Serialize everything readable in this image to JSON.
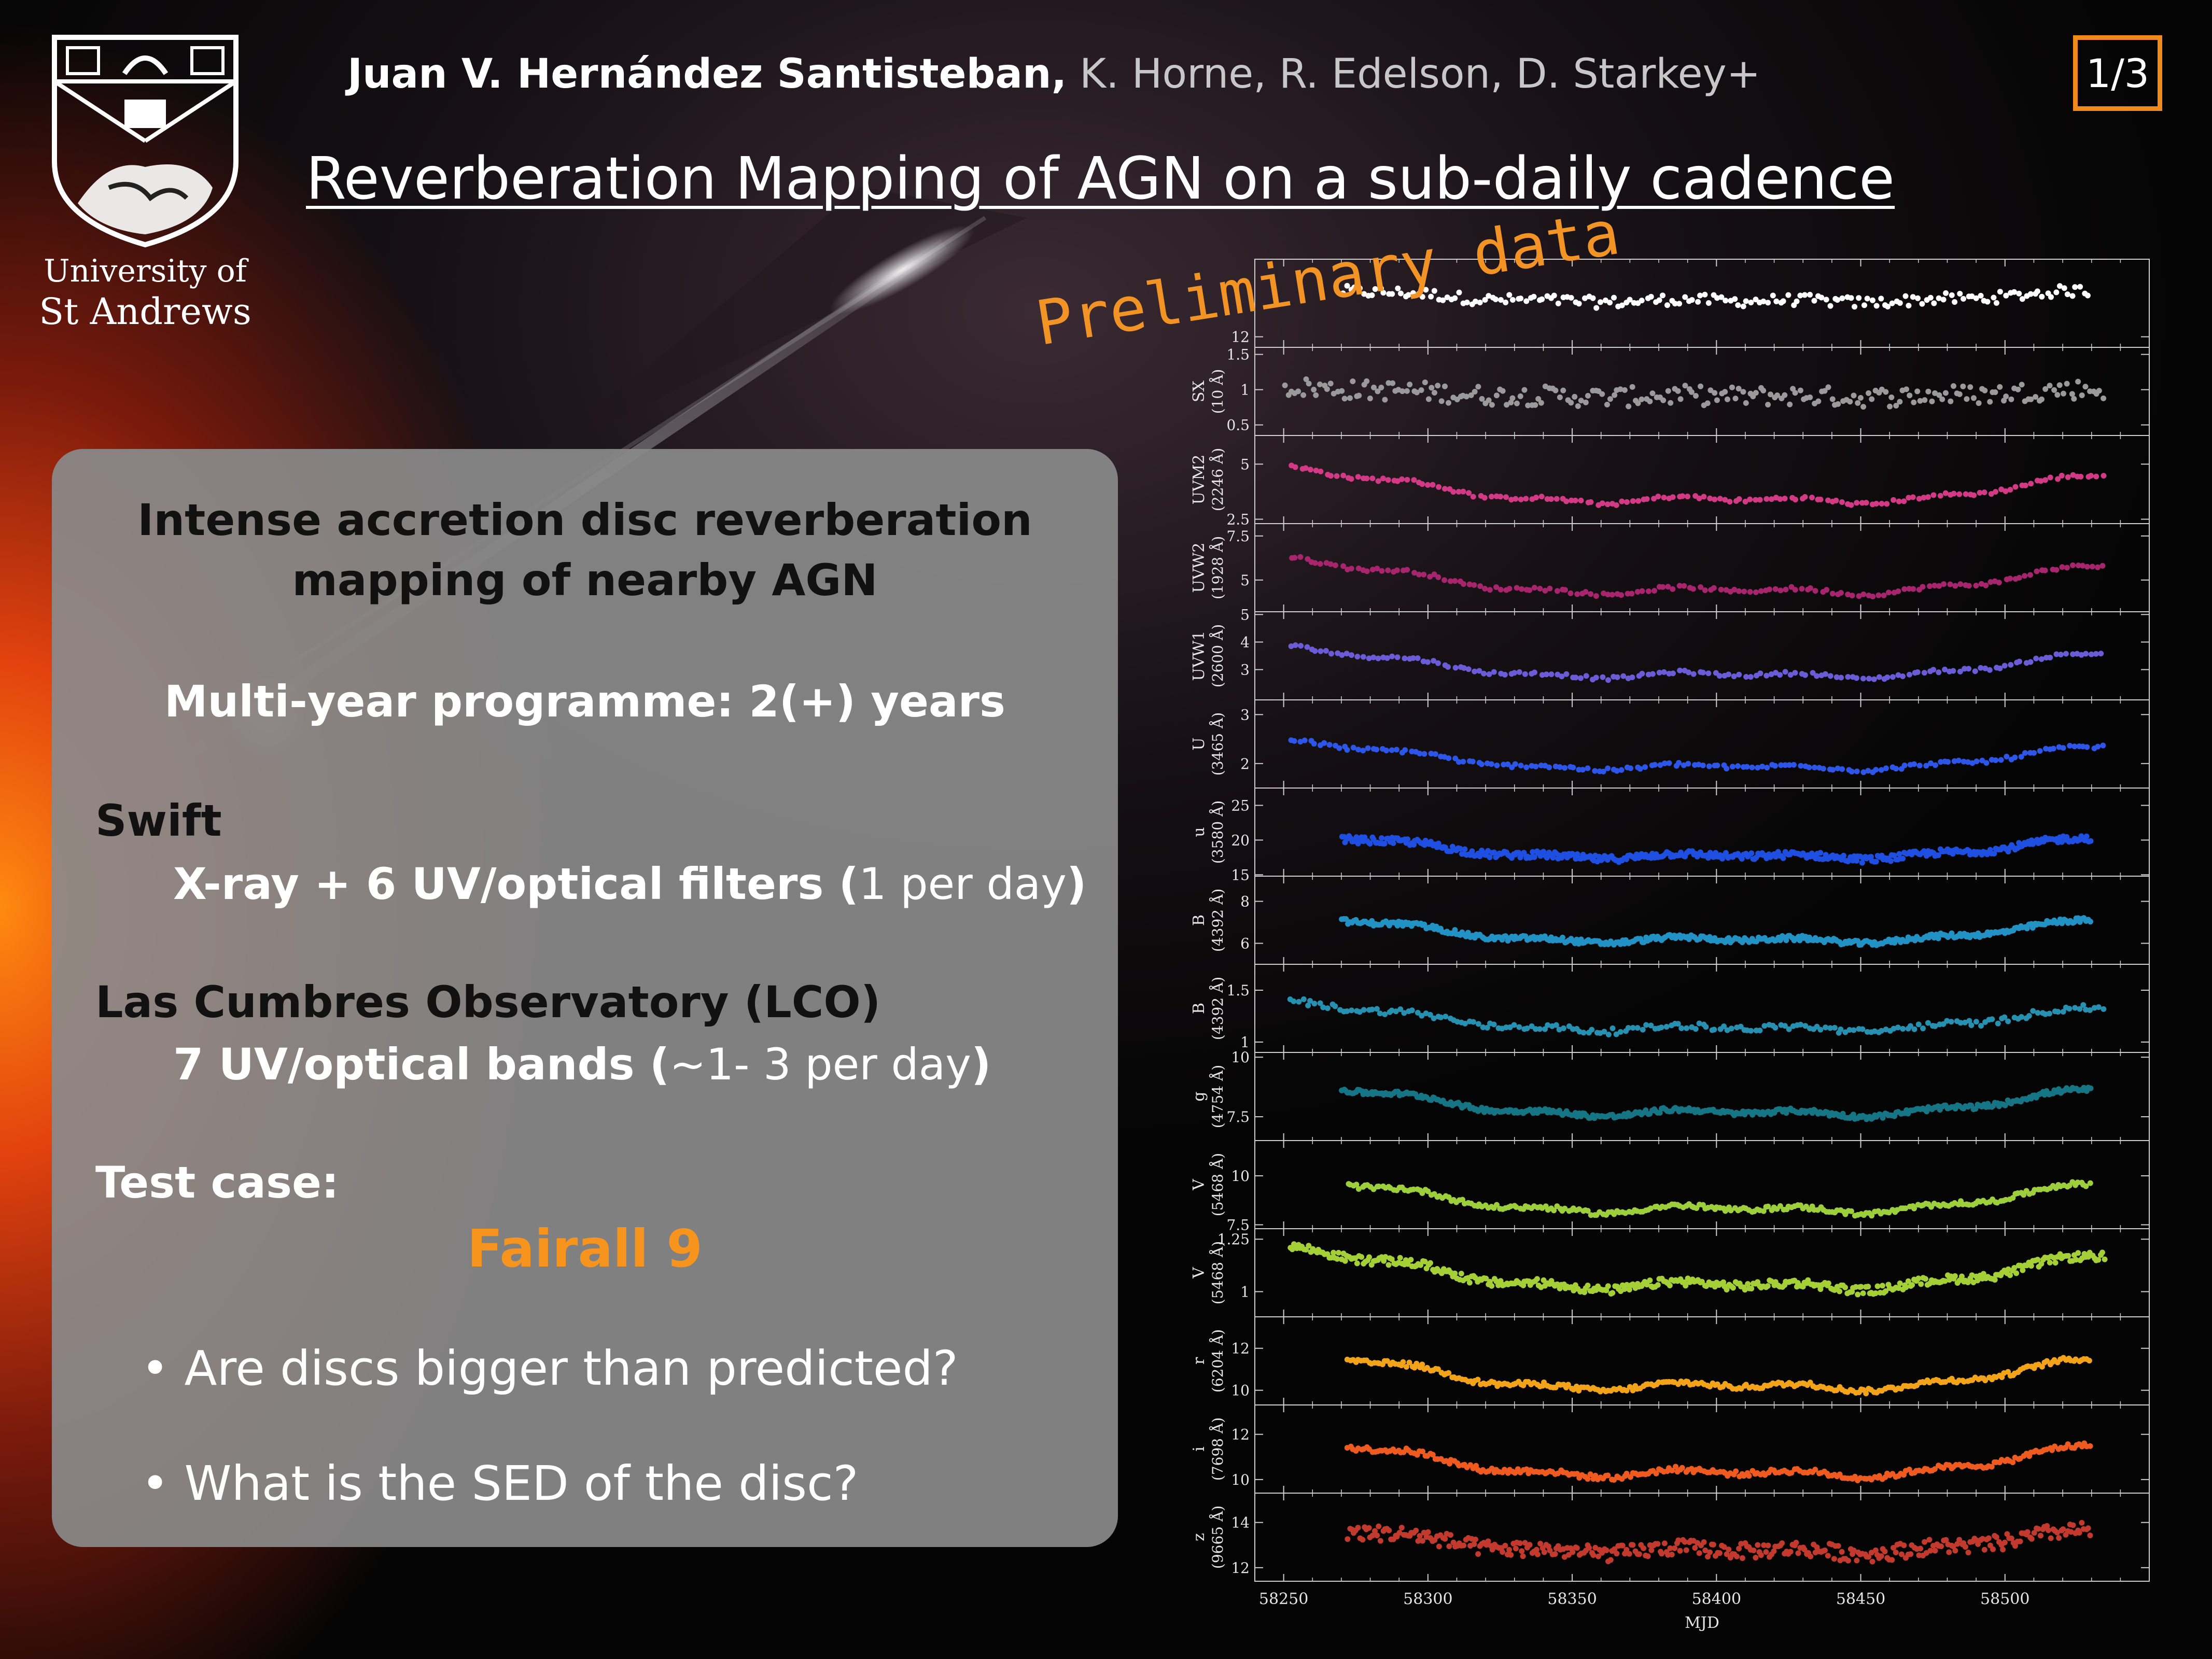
{
  "header": {
    "author_lead": "Juan V. Hernández Santisteban,",
    "author_rest": " K. Horne, R. Edelson, D. Starkey+",
    "title": "Reverberation Mapping of AGN on a sub-daily cadence",
    "page": "1/3",
    "university_line1": "University of",
    "university_line2": "St Andrews"
  },
  "annotation": "Preliminary data",
  "panel": {
    "heading_line1": "Intense accretion disc reverberation",
    "heading_line2": "mapping of nearby AGN",
    "programme": "Multi-year programme: 2(+) years",
    "swift_label": "Swift",
    "swift_detail": "X-ray + 6 UV/optical filters (",
    "swift_rate": "1 per day",
    "swift_close": ")",
    "lco_label": "Las Cumbres Observatory (LCO)",
    "lco_detail": "7 UV/optical bands (",
    "lco_rate": "~1- 3 per day",
    "lco_close": ")",
    "test_label": "Test case:",
    "target": "Fairall 9",
    "bullets": [
      "Are discs bigger than predicted?",
      "What is the SED of the disc?"
    ]
  },
  "colors": {
    "accent": "#f08a1a",
    "target": "#f7941d"
  },
  "chart_data": {
    "type": "scatter",
    "xlabel": "MJD",
    "xlim": [
      58240,
      58550
    ],
    "xticks": [
      58250,
      58300,
      58350,
      58400,
      58450,
      58500
    ],
    "panels": [
      {
        "name": "",
        "color": "#ffffff",
        "ylim": [
          11.7,
          14.2
        ],
        "yticks": [
          12
        ],
        "start": 58270,
        "end": 58530,
        "base": 13.0,
        "amp": 0.35,
        "n": 180,
        "noise": 0.16
      },
      {
        "name": "SX (10 Å)",
        "color": "#9a9a9a",
        "ylim": [
          0.35,
          1.6
        ],
        "yticks": [
          0.5,
          1.0,
          1.5
        ],
        "start": 58250,
        "end": 58535,
        "base": 0.9,
        "amp": 0.12,
        "n": 230,
        "noise": 0.14
      },
      {
        "name": "UVM2 (2246 Å)",
        "color": "#d23a85",
        "ylim": [
          2.3,
          6.3
        ],
        "yticks": [
          2.5,
          5.0
        ],
        "start": 58252,
        "end": 58535,
        "base": 3.3,
        "amp": 1.35,
        "n": 160,
        "noise": 0.08
      },
      {
        "name": "UVW2 (1928 Å)",
        "color": "#a6256d",
        "ylim": [
          3.2,
          8.2
        ],
        "yticks": [
          5.0,
          7.5
        ],
        "start": 58252,
        "end": 58535,
        "base": 4.3,
        "amp": 1.7,
        "n": 160,
        "noise": 0.1
      },
      {
        "name": "UVW1 (2600 Å)",
        "color": "#6a5cd6",
        "ylim": [
          1.9,
          5.1
        ],
        "yticks": [
          3,
          4,
          5
        ],
        "start": 58252,
        "end": 58535,
        "base": 2.75,
        "amp": 0.95,
        "n": 160,
        "noise": 0.06
      },
      {
        "name": "U (3465 Å)",
        "color": "#2d55e8",
        "ylim": [
          1.5,
          3.3
        ],
        "yticks": [
          2,
          3
        ],
        "start": 58252,
        "end": 58535,
        "base": 1.9,
        "amp": 0.5,
        "n": 170,
        "noise": 0.04
      },
      {
        "name": "u (3580 Å)",
        "color": "#1f4fe0",
        "ylim": [
          14.8,
          27.5
        ],
        "yticks": [
          15,
          20,
          25
        ],
        "start": 58270,
        "end": 58530,
        "base": 17.5,
        "amp": 3.2,
        "n": 420,
        "noise": 0.5
      },
      {
        "name": "B (4392 Å)",
        "color": "#2291c4",
        "ylim": [
          5.0,
          9.2
        ],
        "yticks": [
          6,
          8
        ],
        "start": 58270,
        "end": 58530,
        "base": 6.1,
        "amp": 1.15,
        "n": 380,
        "noise": 0.12
      },
      {
        "name": "B (4392 Å)",
        "color": "#2790b0",
        "ylim": [
          0.9,
          1.75
        ],
        "yticks": [
          1.0,
          1.5
        ],
        "start": 58252,
        "end": 58535,
        "base": 1.12,
        "amp": 0.24,
        "n": 200,
        "noise": 0.03
      },
      {
        "name": "g (4754 Å)",
        "color": "#167585",
        "ylim": [
          6.5,
          10.2
        ],
        "yticks": [
          7.5,
          10.0
        ],
        "start": 58270,
        "end": 58530,
        "base": 7.6,
        "amp": 1.2,
        "n": 380,
        "noise": 0.1
      },
      {
        "name": "V (5468 Å)",
        "color": "#9dce3c",
        "ylim": [
          7.3,
          11.8
        ],
        "yticks": [
          7.5,
          10.0
        ],
        "start": 58272,
        "end": 58530,
        "base": 8.2,
        "amp": 1.6,
        "n": 260,
        "noise": 0.12
      },
      {
        "name": "V (5468 Å)",
        "color": "#a4cf36",
        "ylim": [
          0.88,
          1.3
        ],
        "yticks": [
          1.0,
          1.25
        ],
        "start": 58252,
        "end": 58535,
        "base": 1.02,
        "amp": 0.17,
        "n": 400,
        "noise": 0.02
      },
      {
        "name": "r (6204 Å)",
        "color": "#f2a319",
        "ylim": [
          9.3,
          13.5
        ],
        "yticks": [
          10,
          12
        ],
        "start": 58272,
        "end": 58530,
        "base": 10.1,
        "amp": 1.6,
        "n": 280,
        "noise": 0.12
      },
      {
        "name": "i (7698 Å)",
        "color": "#ee5a1f",
        "ylim": [
          9.4,
          13.3
        ],
        "yticks": [
          10,
          12
        ],
        "start": 58272,
        "end": 58530,
        "base": 10.2,
        "amp": 1.5,
        "n": 280,
        "noise": 0.12
      },
      {
        "name": "z (9665 Å)",
        "color": "#c23a2e",
        "ylim": [
          11.4,
          15.3
        ],
        "yticks": [
          12,
          14
        ],
        "start": 58272,
        "end": 58530,
        "base": 12.7,
        "amp": 1.1,
        "n": 360,
        "noise": 0.35
      }
    ]
  }
}
